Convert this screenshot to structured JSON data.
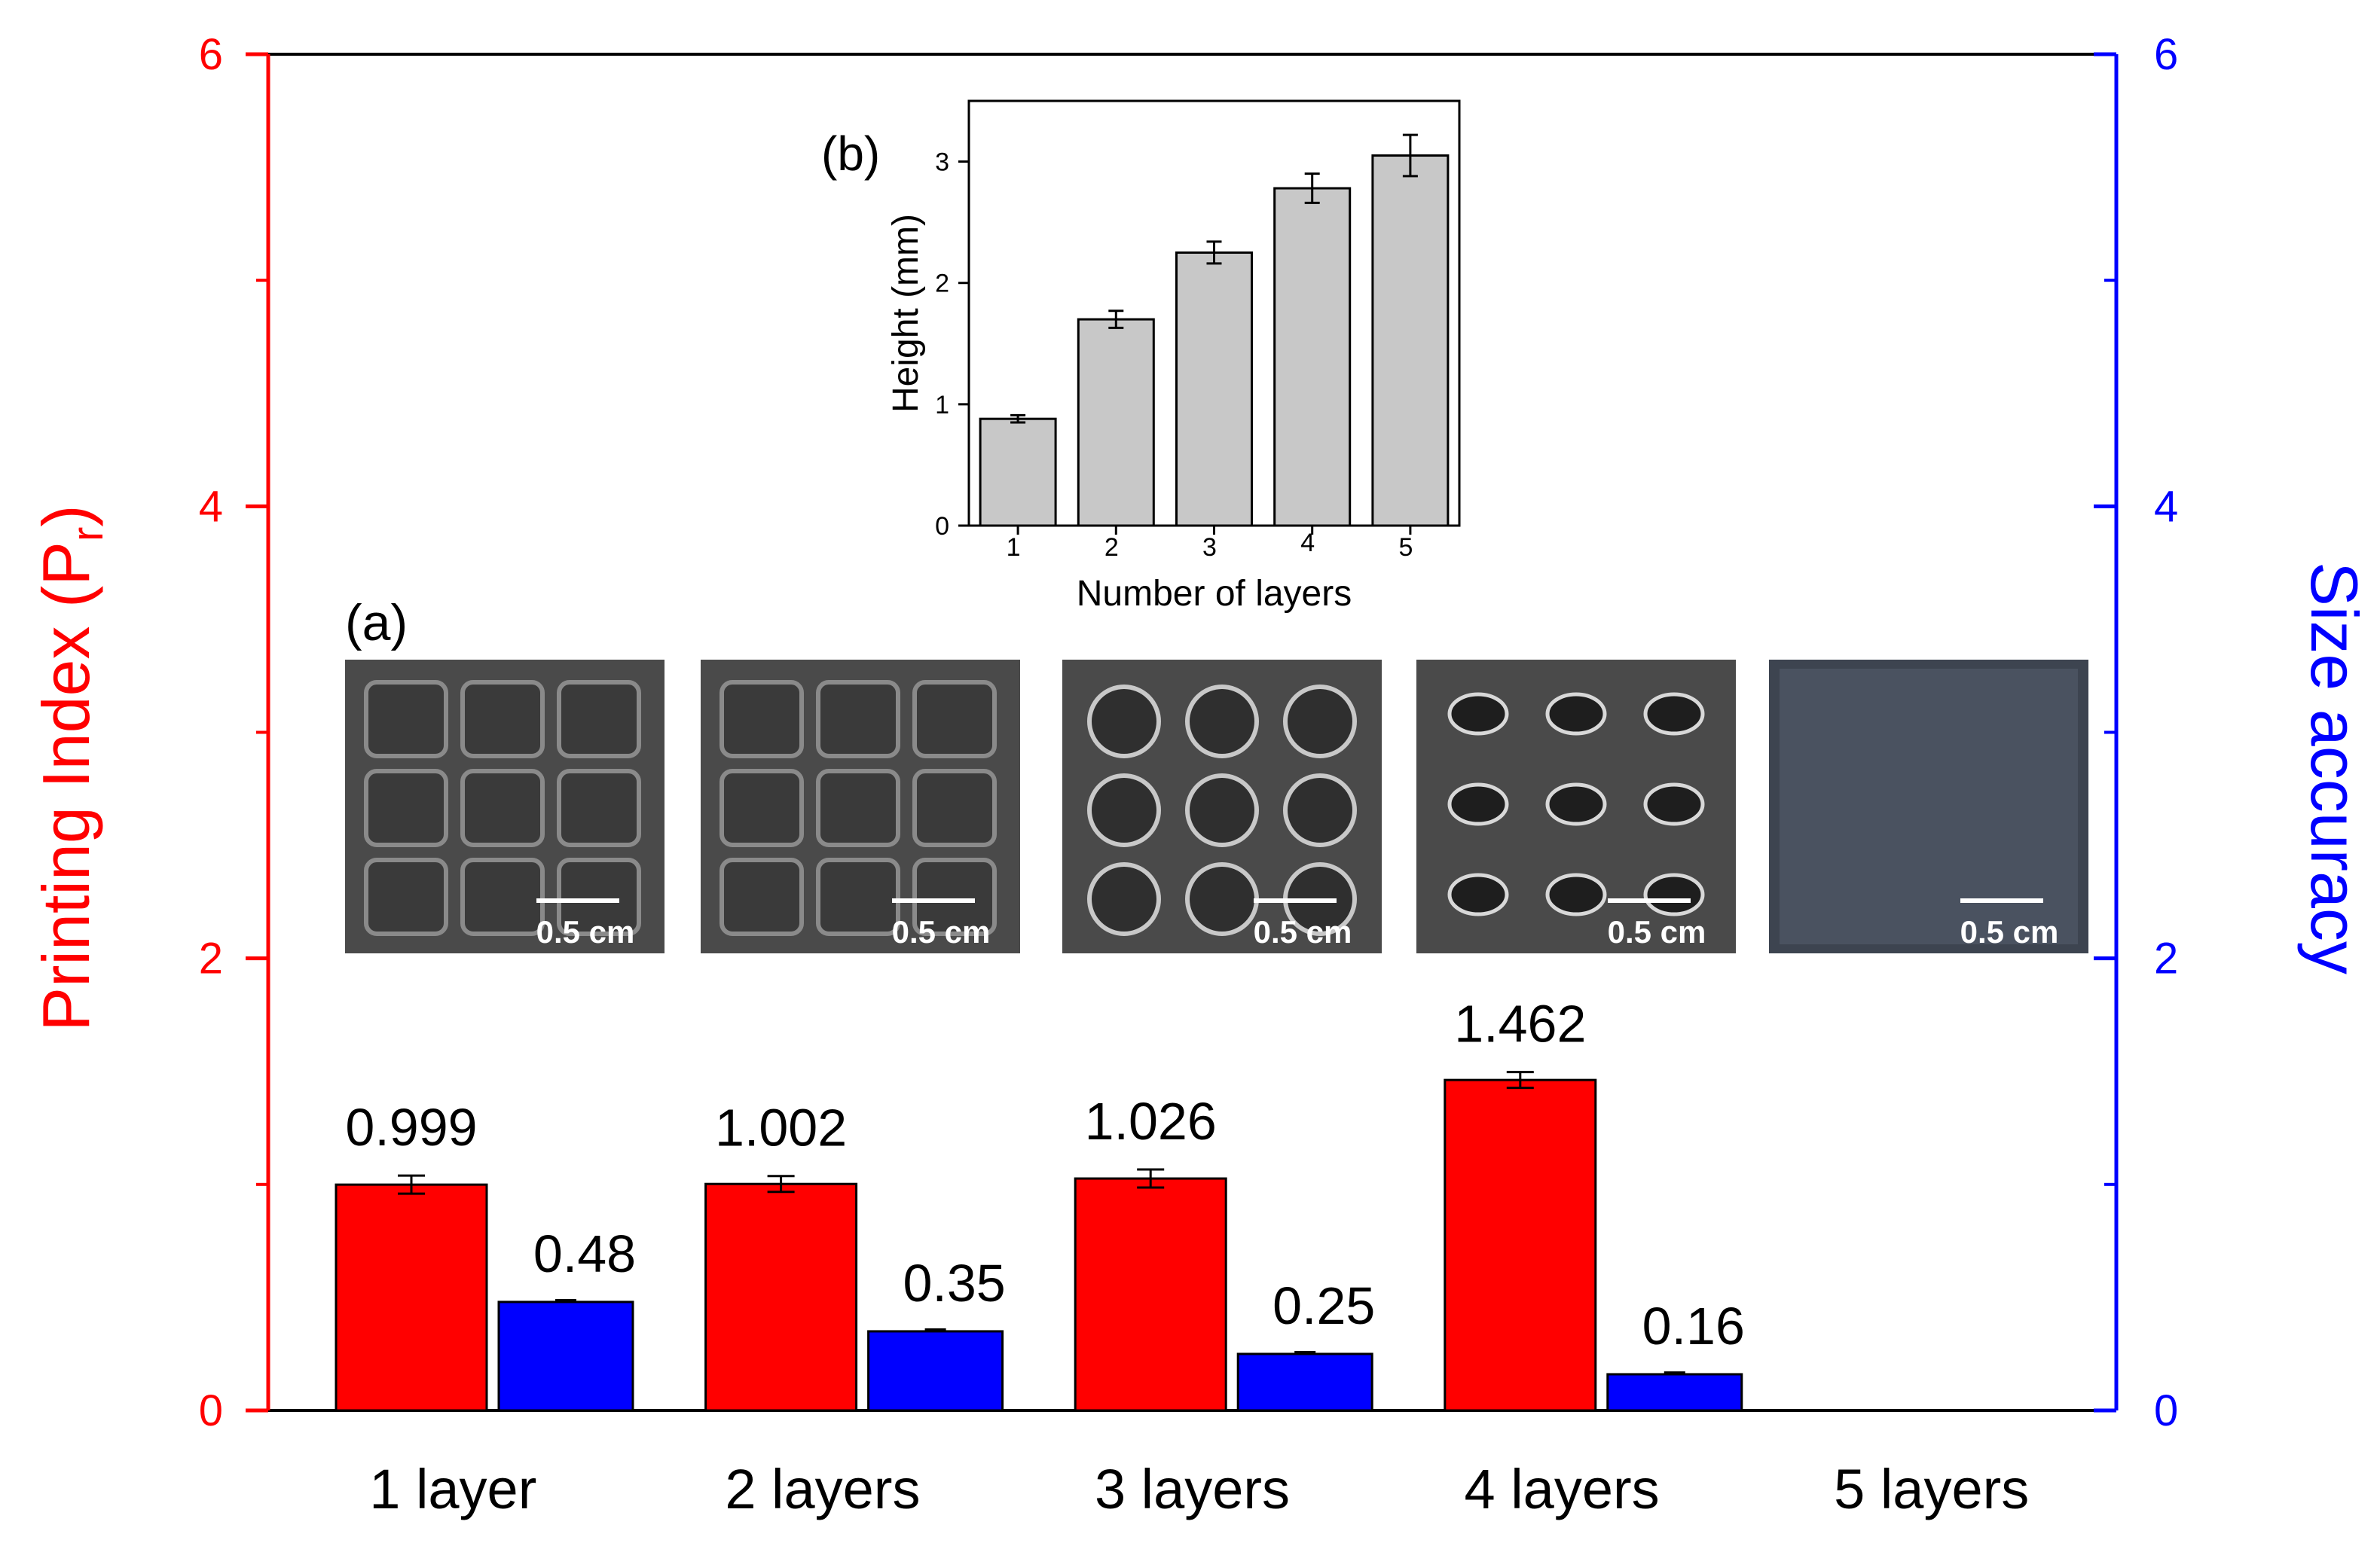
{
  "chart_data": [
    {
      "type": "bar",
      "panel_label": "(a)",
      "categories": [
        "1 layer",
        "2 layers",
        "3 layers",
        "4 layers",
        "5 layers"
      ],
      "series": [
        {
          "name": "Printing Index (Pr)",
          "axis": "left",
          "color": "#ff0000",
          "values": [
            0.999,
            1.002,
            1.026,
            1.462,
            null
          ],
          "errors": [
            0.04,
            0.035,
            0.04,
            0.035,
            null
          ],
          "labels": [
            "0.999",
            "1.002",
            "1.026",
            "1.462",
            ""
          ]
        },
        {
          "name": "Size accuracy",
          "axis": "right",
          "color": "#0000ff",
          "values": [
            0.48,
            0.35,
            0.25,
            0.16,
            null
          ],
          "errors": [
            0.008,
            0.008,
            0.008,
            0.008,
            null
          ],
          "labels": [
            "0.48",
            "0.35",
            "0.25",
            "0.16",
            ""
          ]
        }
      ],
      "y_left": {
        "label": "Printing Index (P",
        "label_sub": "r",
        "label_close": ")",
        "ylim": [
          0,
          6
        ],
        "ticks": [
          "0",
          "2",
          "4",
          "6"
        ],
        "color": "#ff0000"
      },
      "y_right": {
        "label": "Size accuracy",
        "ylim": [
          0,
          6
        ],
        "ticks": [
          "0",
          "2",
          "4",
          "6"
        ],
        "color": "#0000ff"
      },
      "photos": [
        {
          "layers": 1,
          "scale": "0.5 cm",
          "pattern": "grid"
        },
        {
          "layers": 2,
          "scale": "0.5 cm",
          "pattern": "grid"
        },
        {
          "layers": 3,
          "scale": "0.5 cm",
          "pattern": "ovals"
        },
        {
          "layers": 4,
          "scale": "0.5 cm",
          "pattern": "dots"
        },
        {
          "layers": 5,
          "scale": "0.5 cm",
          "pattern": "solid"
        }
      ]
    },
    {
      "type": "bar",
      "panel_label": "(b)",
      "categories": [
        "1",
        "2",
        "3",
        "4",
        "5"
      ],
      "values": [
        0.88,
        1.7,
        2.25,
        2.78,
        3.05
      ],
      "errors": [
        0.03,
        0.07,
        0.09,
        0.12,
        0.17
      ],
      "xlabel": "Number of layers",
      "ylabel": "Height (mm)",
      "ylim": [
        0,
        3.5
      ],
      "yticks": [
        "0",
        "1",
        "2",
        "3"
      ],
      "bar_color": "#c8c8c8"
    }
  ]
}
